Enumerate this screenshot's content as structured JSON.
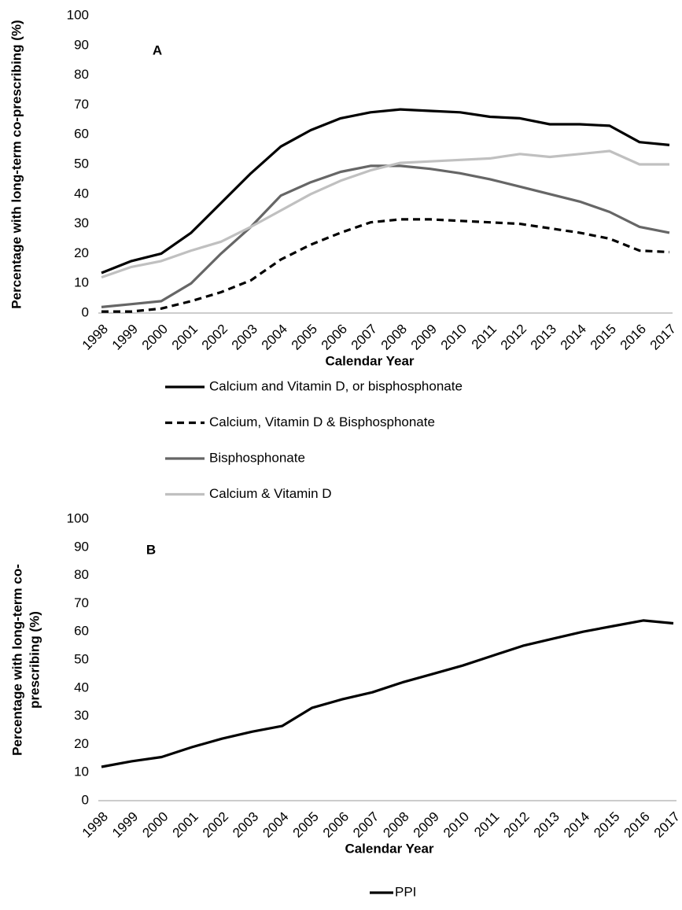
{
  "chart_data": [
    {
      "type": "line",
      "annotation": "A",
      "xlabel": "Calendar Year",
      "ylabel_lines": [
        "Percentage with long-term co-prescribing (%)"
      ],
      "categories": [
        "1998",
        "1999",
        "2000",
        "2001",
        "2002",
        "2003",
        "2004",
        "2005",
        "2006",
        "2007",
        "2008",
        "2009",
        "2010",
        "2011",
        "2012",
        "2013",
        "2014",
        "2015",
        "2016",
        "2017"
      ],
      "ylim": [
        0,
        100
      ],
      "yticks": [
        0,
        10,
        20,
        30,
        40,
        50,
        60,
        70,
        80,
        90,
        100
      ],
      "legend": "bottom",
      "series": [
        {
          "name": "Calcium and Vitamin D, or bisphosphonate",
          "color": "#000000",
          "style": "solid",
          "values": [
            13.5,
            17.5,
            20,
            27,
            37,
            47,
            56,
            61.5,
            65.5,
            67.5,
            68.5,
            68,
            67.5,
            66,
            65.5,
            63.5,
            63.5,
            63,
            57.5,
            56.5
          ]
        },
        {
          "name": "Calcium, Vitamin D & Bisphosphonate",
          "color": "#000000",
          "style": "dashed",
          "values": [
            0.5,
            0.5,
            1.5,
            4,
            7,
            11,
            18,
            23,
            27,
            30.5,
            31.5,
            31.5,
            31,
            30.5,
            30,
            28.5,
            27,
            25,
            21,
            20.5
          ]
        },
        {
          "name": "Bisphosphonate",
          "color": "#666666",
          "style": "solid",
          "values": [
            2,
            3,
            4,
            10,
            20,
            29,
            39.5,
            44,
            47.5,
            49.5,
            49.5,
            48.5,
            47,
            45,
            42.5,
            40,
            37.5,
            34,
            29,
            27
          ]
        },
        {
          "name": "Calcium & Vitamin D",
          "color": "#c0c0c0",
          "style": "solid",
          "values": [
            12,
            15.5,
            17.5,
            21,
            24,
            29,
            34.5,
            40,
            44.5,
            48,
            50.5,
            51,
            51.5,
            52,
            53.5,
            52.5,
            53.5,
            54.5,
            50,
            50
          ]
        }
      ]
    },
    {
      "type": "line",
      "annotation": "B",
      "xlabel": "Calendar Year",
      "ylabel_lines": [
        "Percentage with long-term co-",
        "prescribing (%)"
      ],
      "categories": [
        "1998",
        "1999",
        "2000",
        "2001",
        "2002",
        "2003",
        "2004",
        "2005",
        "2006",
        "2007",
        "2008",
        "2009",
        "2010",
        "2011",
        "2012",
        "2013",
        "2014",
        "2015",
        "2016",
        "2017"
      ],
      "ylim": [
        0,
        100
      ],
      "yticks": [
        0,
        10,
        20,
        30,
        40,
        50,
        60,
        70,
        80,
        90,
        100
      ],
      "legend": "bottom",
      "series": [
        {
          "name": "PPI",
          "color": "#000000",
          "style": "solid",
          "values": [
            12,
            14,
            15.5,
            19,
            22,
            24.5,
            26.5,
            33,
            36,
            38.5,
            42,
            45,
            48,
            51.5,
            55,
            57.5,
            60,
            62,
            64,
            63
          ]
        }
      ]
    }
  ]
}
